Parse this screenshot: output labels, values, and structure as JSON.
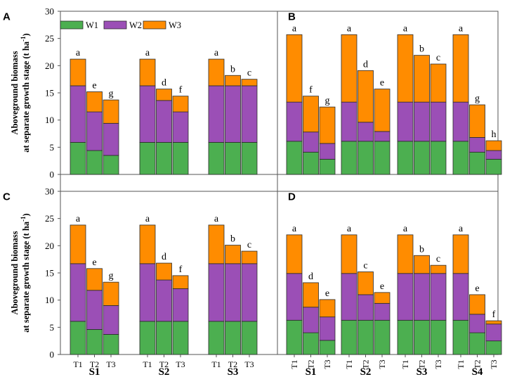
{
  "chart_data": {
    "type": "stacked-bar",
    "ylabel_line1": "Aboveground biomass",
    "ylabel_line2": "at separate growth stage (t ha",
    "ylabel_sup": "-1",
    "ylabel_close": ")",
    "ylim": [
      0,
      30
    ],
    "yticks": [
      0,
      5,
      10,
      15,
      20,
      25,
      30
    ],
    "legend": [
      {
        "name": "W1",
        "color": "#4caf50"
      },
      {
        "name": "W2",
        "color": "#9b4fb6"
      },
      {
        "name": "W3",
        "color": "#ff8c00"
      }
    ],
    "sub_labels": [
      "T1",
      "T2",
      "T3"
    ],
    "panels": [
      {
        "id": "A",
        "groups": [
          {
            "name": "S1",
            "bars": [
              {
                "label": "T1",
                "w1": 5.9,
                "w2": 10.4,
                "w3": 4.9,
                "letter": "a"
              },
              {
                "label": "T2",
                "w1": 4.4,
                "w2": 7.1,
                "w3": 3.7,
                "letter": "e"
              },
              {
                "label": "T3",
                "w1": 3.5,
                "w2": 5.9,
                "w3": 4.3,
                "letter": "g"
              }
            ]
          },
          {
            "name": "S2",
            "bars": [
              {
                "label": "T1",
                "w1": 5.9,
                "w2": 10.4,
                "w3": 4.9,
                "letter": "a"
              },
              {
                "label": "T2",
                "w1": 5.9,
                "w2": 7.7,
                "w3": 2.1,
                "letter": "d"
              },
              {
                "label": "T3",
                "w1": 5.9,
                "w2": 5.6,
                "w3": 2.9,
                "letter": "f"
              }
            ]
          },
          {
            "name": "S3",
            "bars": [
              {
                "label": "T1",
                "w1": 5.9,
                "w2": 10.4,
                "w3": 4.9,
                "letter": "a"
              },
              {
                "label": "T2",
                "w1": 5.9,
                "w2": 10.4,
                "w3": 1.9,
                "letter": "b"
              },
              {
                "label": "T3",
                "w1": 5.9,
                "w2": 10.4,
                "w3": 1.2,
                "letter": "c"
              }
            ]
          }
        ]
      },
      {
        "id": "B",
        "groups": [
          {
            "name": "S1",
            "bars": [
              {
                "label": "T1",
                "w1": 6.1,
                "w2": 7.2,
                "w3": 12.4,
                "letter": "a"
              },
              {
                "label": "T2",
                "w1": 4.1,
                "w2": 3.7,
                "w3": 6.6,
                "letter": "f"
              },
              {
                "label": "T3",
                "w1": 2.8,
                "w2": 2.9,
                "w3": 6.7,
                "letter": "g"
              }
            ]
          },
          {
            "name": "S2",
            "bars": [
              {
                "label": "T1",
                "w1": 6.1,
                "w2": 7.2,
                "w3": 12.4,
                "letter": "a"
              },
              {
                "label": "T2",
                "w1": 6.1,
                "w2": 3.5,
                "w3": 9.5,
                "letter": "d"
              },
              {
                "label": "T3",
                "w1": 6.1,
                "w2": 1.8,
                "w3": 7.8,
                "letter": "e"
              }
            ]
          },
          {
            "name": "S3",
            "bars": [
              {
                "label": "T1",
                "w1": 6.1,
                "w2": 7.2,
                "w3": 12.4,
                "letter": "a"
              },
              {
                "label": "T2",
                "w1": 6.1,
                "w2": 7.2,
                "w3": 8.6,
                "letter": "b"
              },
              {
                "label": "T3",
                "w1": 6.1,
                "w2": 7.2,
                "w3": 7.0,
                "letter": "c"
              }
            ]
          },
          {
            "name": "S4",
            "bars": [
              {
                "label": "T1",
                "w1": 6.1,
                "w2": 7.2,
                "w3": 12.4,
                "letter": "a"
              },
              {
                "label": "T2",
                "w1": 4.1,
                "w2": 2.7,
                "w3": 6.0,
                "letter": "g"
              },
              {
                "label": "T3",
                "w1": 2.8,
                "w2": 1.6,
                "w3": 1.8,
                "letter": "h"
              }
            ]
          }
        ]
      },
      {
        "id": "C",
        "groups": [
          {
            "name": "S1",
            "bars": [
              {
                "label": "T1",
                "w1": 6.1,
                "w2": 10.6,
                "w3": 7.1,
                "letter": "a"
              },
              {
                "label": "T2",
                "w1": 4.6,
                "w2": 7.2,
                "w3": 4.0,
                "letter": "e"
              },
              {
                "label": "T3",
                "w1": 3.7,
                "w2": 5.3,
                "w3": 4.3,
                "letter": "g"
              }
            ]
          },
          {
            "name": "S2",
            "bars": [
              {
                "label": "T1",
                "w1": 6.1,
                "w2": 10.6,
                "w3": 7.1,
                "letter": "a"
              },
              {
                "label": "T2",
                "w1": 6.1,
                "w2": 7.6,
                "w3": 3.1,
                "letter": "d"
              },
              {
                "label": "T3",
                "w1": 6.1,
                "w2": 6.0,
                "w3": 2.4,
                "letter": "f"
              }
            ]
          },
          {
            "name": "S3",
            "bars": [
              {
                "label": "T1",
                "w1": 6.1,
                "w2": 10.6,
                "w3": 7.1,
                "letter": "a"
              },
              {
                "label": "T2",
                "w1": 6.1,
                "w2": 10.6,
                "w3": 3.4,
                "letter": "b"
              },
              {
                "label": "T3",
                "w1": 6.1,
                "w2": 10.6,
                "w3": 2.3,
                "letter": "c"
              }
            ]
          }
        ]
      },
      {
        "id": "D",
        "groups": [
          {
            "name": "S1",
            "bars": [
              {
                "label": "T1",
                "w1": 6.3,
                "w2": 8.6,
                "w3": 7.1,
                "letter": "a"
              },
              {
                "label": "T2",
                "w1": 4.0,
                "w2": 4.7,
                "w3": 4.5,
                "letter": "d"
              },
              {
                "label": "T3",
                "w1": 2.6,
                "w2": 4.3,
                "w3": 3.2,
                "letter": "e"
              }
            ]
          },
          {
            "name": "S2",
            "bars": [
              {
                "label": "T1",
                "w1": 6.3,
                "w2": 8.6,
                "w3": 7.1,
                "letter": "a"
              },
              {
                "label": "T2",
                "w1": 6.3,
                "w2": 4.7,
                "w3": 4.2,
                "letter": "c"
              },
              {
                "label": "T3",
                "w1": 6.3,
                "w2": 3.1,
                "w3": 2.0,
                "letter": "e"
              }
            ]
          },
          {
            "name": "S3",
            "bars": [
              {
                "label": "T1",
                "w1": 6.3,
                "w2": 8.6,
                "w3": 7.1,
                "letter": "a"
              },
              {
                "label": "T2",
                "w1": 6.3,
                "w2": 8.6,
                "w3": 3.3,
                "letter": "b"
              },
              {
                "label": "T3",
                "w1": 6.3,
                "w2": 8.6,
                "w3": 1.5,
                "letter": "c"
              }
            ]
          },
          {
            "name": "S4",
            "bars": [
              {
                "label": "T1",
                "w1": 6.3,
                "w2": 8.6,
                "w3": 7.1,
                "letter": "a"
              },
              {
                "label": "T2",
                "w1": 4.0,
                "w2": 3.4,
                "w3": 3.6,
                "letter": "e"
              },
              {
                "label": "T3",
                "w1": 2.5,
                "w2": 3.1,
                "w3": 0.6,
                "letter": "f"
              }
            ]
          }
        ]
      }
    ]
  }
}
